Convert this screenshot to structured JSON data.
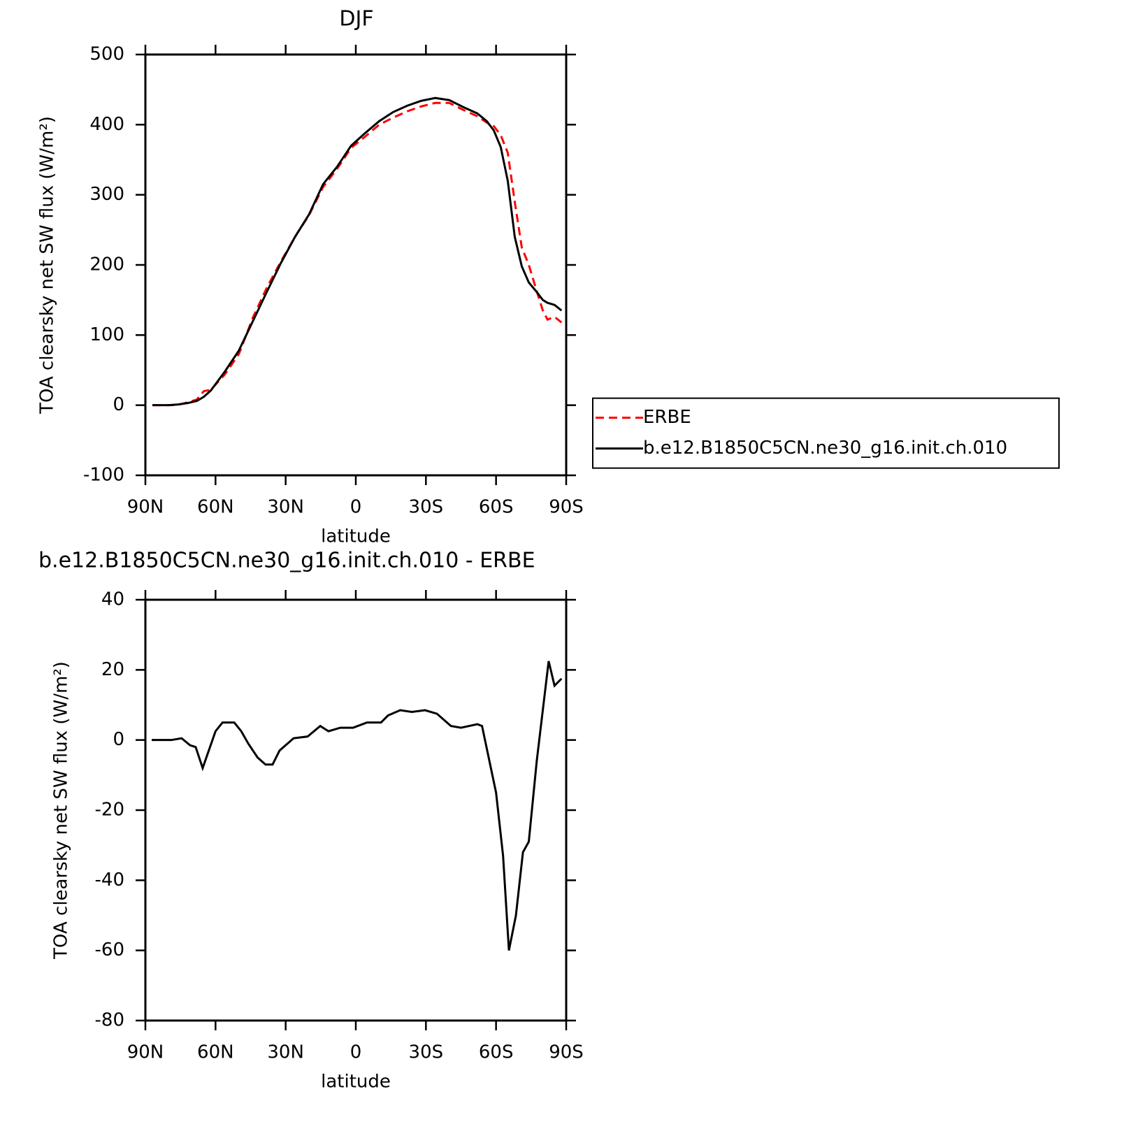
{
  "chart_data": [
    {
      "type": "line",
      "title": "DJF",
      "xlabel": "latitude",
      "ylabel": "TOA clearsky net SW flux (W/m²)",
      "x": [
        87,
        80,
        76,
        72,
        68,
        65,
        62,
        56,
        50,
        44,
        38,
        32,
        26,
        20,
        14,
        8,
        2,
        -4,
        -10,
        -16,
        -22,
        -28,
        -34,
        -40,
        -46,
        -52,
        -56,
        -59,
        -62,
        -65,
        -68,
        -71,
        -74,
        -77,
        -80,
        -82,
        -85,
        -88
      ],
      "series": [
        {
          "name": "ERBE",
          "color": "#ff0000",
          "dashed": true,
          "values": [
            0,
            0,
            0.5,
            4,
            8,
            20,
            22,
            44,
            73,
            125,
            168,
            205,
            240,
            271,
            311,
            337,
            367,
            383,
            400,
            410,
            419,
            426,
            431,
            431,
            421,
            412,
            403,
            398,
            385,
            360,
            290,
            225,
            200,
            167,
            135,
            122,
            126,
            118
          ]
        },
        {
          "name": "b.e12.B1850C5CN.ne30_g16.init.ch.010",
          "color": "#000000",
          "dashed": false,
          "values": [
            0,
            0,
            1,
            3,
            6,
            12,
            21,
            48,
            78,
            120,
            162,
            203,
            240,
            272,
            315,
            340,
            370,
            388,
            405,
            418,
            427,
            434,
            438,
            435,
            425,
            416,
            405,
            392,
            368,
            320,
            240,
            198,
            175,
            163,
            150,
            146,
            143,
            135
          ]
        }
      ],
      "xlim": [
        90,
        -90
      ],
      "ylim": [
        -100,
        500
      ],
      "xticks": [
        {
          "value": 90,
          "label": "90N"
        },
        {
          "value": 60,
          "label": "60N"
        },
        {
          "value": 30,
          "label": "30N"
        },
        0,
        {
          "value": -30,
          "label": "30S"
        },
        {
          "value": -60,
          "label": "60S"
        },
        {
          "value": -90,
          "label": "90S"
        }
      ],
      "yticks": [
        -100,
        0,
        100,
        200,
        300,
        400,
        500
      ],
      "legend": "right"
    },
    {
      "type": "line",
      "title": "b.e12.B1850C5CN.ne30_g16.init.ch.010 - ERBE",
      "xlabel": "latitude",
      "ylabel": "TOA clearsky net SW flux (W/m²)",
      "x": [
        87.3,
        78.9,
        74.5,
        70.9,
        68.5,
        65.5,
        60,
        57,
        52,
        49,
        46,
        42,
        38.6,
        35.6,
        32.6,
        26.6,
        20.6,
        15.2,
        11.7,
        6.6,
        1.2,
        -4.8,
        -10.8,
        -13.8,
        -19,
        -24,
        -29.6,
        -34.7,
        -40.7,
        -45,
        -52,
        -54,
        -60,
        -63,
        -65.5,
        -68.5,
        -71.5,
        -74,
        -77.4,
        -82.5,
        -85,
        -88
      ],
      "values": [
        0,
        0,
        0.5,
        -1.5,
        -2,
        -8,
        2.5,
        5,
        5,
        2.5,
        -1,
        -5,
        -7,
        -7,
        -3,
        0.5,
        1,
        4,
        2.5,
        3.5,
        3.5,
        5,
        5,
        7,
        8.5,
        8,
        8.5,
        7.5,
        4,
        3.5,
        4.5,
        4,
        -15,
        -33,
        -60,
        -50,
        -32,
        -29,
        -6,
        22.5,
        15.5,
        17.5
      ],
      "color": "#000000",
      "xlim": [
        90,
        -90
      ],
      "ylim": [
        -80,
        40
      ],
      "xticks": [
        {
          "value": 90,
          "label": "90N"
        },
        {
          "value": 60,
          "label": "60N"
        },
        {
          "value": 30,
          "label": "30N"
        },
        0,
        {
          "value": -30,
          "label": "30S"
        },
        {
          "value": -60,
          "label": "60S"
        },
        {
          "value": -90,
          "label": "90S"
        }
      ],
      "yticks": [
        -80,
        -60,
        -40,
        -20,
        0,
        20,
        40
      ]
    }
  ]
}
